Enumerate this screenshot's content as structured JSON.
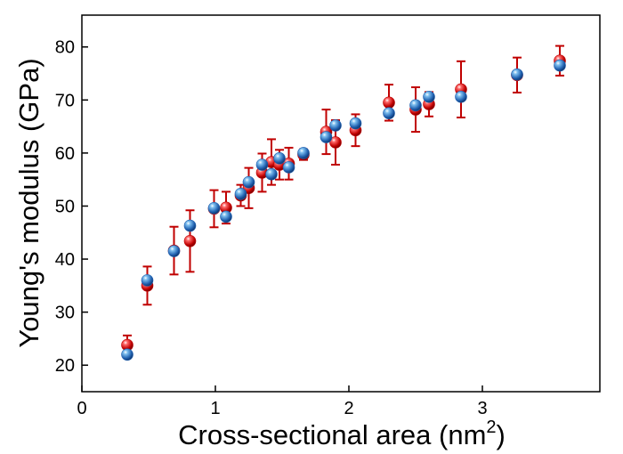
{
  "chart_data": {
    "type": "scatter",
    "title": "",
    "xlabel": "Cross-sectional area (nm",
    "xlabel_superscript": "2",
    "xlabel_suffix": ")",
    "ylabel": "Young's modulus (GPa)",
    "xlim": [
      0,
      3.88
    ],
    "ylim": [
      15,
      86
    ],
    "x_ticks": [
      0,
      1,
      2,
      3
    ],
    "x_tick_labels": [
      "0",
      "1",
      "2",
      "3"
    ],
    "y_ticks": [
      20,
      30,
      40,
      50,
      60,
      70,
      80
    ],
    "y_tick_labels": [
      "20",
      "30",
      "40",
      "50",
      "60",
      "70",
      "80"
    ],
    "grid": false,
    "legend": "none",
    "series": [
      {
        "color": "#c00000",
        "error_bar_color": "#c00000",
        "points": [
          {
            "x": 0.34,
            "y": 23.8,
            "err": 1.8
          },
          {
            "x": 0.49,
            "y": 35.0,
            "err": 3.6
          },
          {
            "x": 0.69,
            "y": 41.6,
            "err": 4.5
          },
          {
            "x": 0.81,
            "y": 43.4,
            "err": 5.8
          },
          {
            "x": 0.99,
            "y": 49.5,
            "err": 3.5
          },
          {
            "x": 1.08,
            "y": 49.7,
            "err": 3.0
          },
          {
            "x": 1.19,
            "y": 52.0,
            "err": 2.0
          },
          {
            "x": 1.25,
            "y": 53.4,
            "err": 3.8
          },
          {
            "x": 1.35,
            "y": 56.3,
            "err": 3.6
          },
          {
            "x": 1.42,
            "y": 58.3,
            "err": 4.3
          },
          {
            "x": 1.48,
            "y": 57.8,
            "err": 2.8
          },
          {
            "x": 1.55,
            "y": 58.0,
            "err": 3.0
          },
          {
            "x": 1.66,
            "y": 59.7,
            "err": 1.0
          },
          {
            "x": 1.83,
            "y": 64.0,
            "err": 4.2
          },
          {
            "x": 1.9,
            "y": 62.0,
            "err": 4.2
          },
          {
            "x": 2.05,
            "y": 64.3,
            "err": 3.0
          },
          {
            "x": 2.3,
            "y": 69.5,
            "err": 3.4
          },
          {
            "x": 2.5,
            "y": 68.2,
            "err": 4.2
          },
          {
            "x": 2.6,
            "y": 69.2,
            "err": 2.3
          },
          {
            "x": 2.84,
            "y": 72.0,
            "err": 5.3
          },
          {
            "x": 3.26,
            "y": 74.7,
            "err": 3.3
          },
          {
            "x": 3.58,
            "y": 77.4,
            "err": 2.8
          }
        ]
      },
      {
        "color": "#1f5fae",
        "points": [
          {
            "x": 0.34,
            "y": 22.0
          },
          {
            "x": 0.49,
            "y": 36.0
          },
          {
            "x": 0.69,
            "y": 41.5
          },
          {
            "x": 0.81,
            "y": 46.3
          },
          {
            "x": 0.99,
            "y": 49.6
          },
          {
            "x": 1.08,
            "y": 48.0
          },
          {
            "x": 1.19,
            "y": 52.3
          },
          {
            "x": 1.25,
            "y": 54.5
          },
          {
            "x": 1.35,
            "y": 57.8
          },
          {
            "x": 1.42,
            "y": 56.0
          },
          {
            "x": 1.48,
            "y": 59.0
          },
          {
            "x": 1.55,
            "y": 57.3
          },
          {
            "x": 1.66,
            "y": 60.0
          },
          {
            "x": 1.83,
            "y": 63.0
          },
          {
            "x": 1.9,
            "y": 65.2
          },
          {
            "x": 2.05,
            "y": 65.6
          },
          {
            "x": 2.3,
            "y": 67.5
          },
          {
            "x": 2.5,
            "y": 69.0
          },
          {
            "x": 2.6,
            "y": 70.6
          },
          {
            "x": 2.84,
            "y": 70.6
          },
          {
            "x": 3.26,
            "y": 74.8
          },
          {
            "x": 3.58,
            "y": 76.5
          }
        ]
      }
    ]
  }
}
